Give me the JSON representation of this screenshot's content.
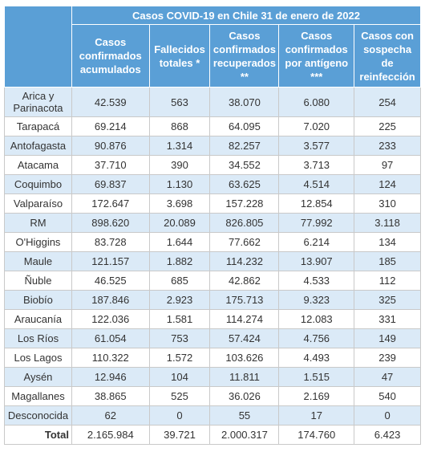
{
  "table": {
    "title": "Casos COVID-19 en Chile 31 de enero de 2022",
    "columns": [
      "Casos confirmados acumulados",
      "Fallecidos totales *",
      "Casos confirmados recuperados **",
      "Casos confirmados por antígeno ***",
      "Casos con sospecha de reinfección"
    ],
    "rows": [
      [
        "Arica y Parinacota",
        "42.539",
        "563",
        "38.070",
        "6.080",
        "254"
      ],
      [
        "Tarapacá",
        "69.214",
        "868",
        "64.095",
        "7.020",
        "225"
      ],
      [
        "Antofagasta",
        "90.876",
        "1.314",
        "82.257",
        "3.577",
        "233"
      ],
      [
        "Atacama",
        "37.710",
        "390",
        "34.552",
        "3.713",
        "97"
      ],
      [
        "Coquimbo",
        "69.837",
        "1.130",
        "63.625",
        "4.514",
        "124"
      ],
      [
        "Valparaíso",
        "172.647",
        "3.698",
        "157.228",
        "12.854",
        "310"
      ],
      [
        "RM",
        "898.620",
        "20.089",
        "826.805",
        "77.992",
        "3.118"
      ],
      [
        "O'Higgins",
        "83.728",
        "1.644",
        "77.662",
        "6.214",
        "134"
      ],
      [
        "Maule",
        "121.157",
        "1.882",
        "114.232",
        "13.907",
        "185"
      ],
      [
        "Ñuble",
        "46.525",
        "685",
        "42.862",
        "4.533",
        "112"
      ],
      [
        "Biobío",
        "187.846",
        "2.923",
        "175.713",
        "9.323",
        "325"
      ],
      [
        "Araucanía",
        "122.036",
        "1.581",
        "114.274",
        "12.083",
        "331"
      ],
      [
        "Los Ríos",
        "61.054",
        "753",
        "57.424",
        "4.756",
        "149"
      ],
      [
        "Los Lagos",
        "110.322",
        "1.572",
        "103.626",
        "4.493",
        "239"
      ],
      [
        "Aysén",
        "12.946",
        "104",
        "11.811",
        "1.515",
        "47"
      ],
      [
        "Magallanes",
        "38.865",
        "525",
        "36.026",
        "2.169",
        "540"
      ],
      [
        "Desconocida",
        "62",
        "0",
        "55",
        "17",
        "0"
      ]
    ],
    "total": [
      "Total",
      "2.165.984",
      "39.721",
      "2.000.317",
      "174.760",
      "6.423"
    ]
  }
}
